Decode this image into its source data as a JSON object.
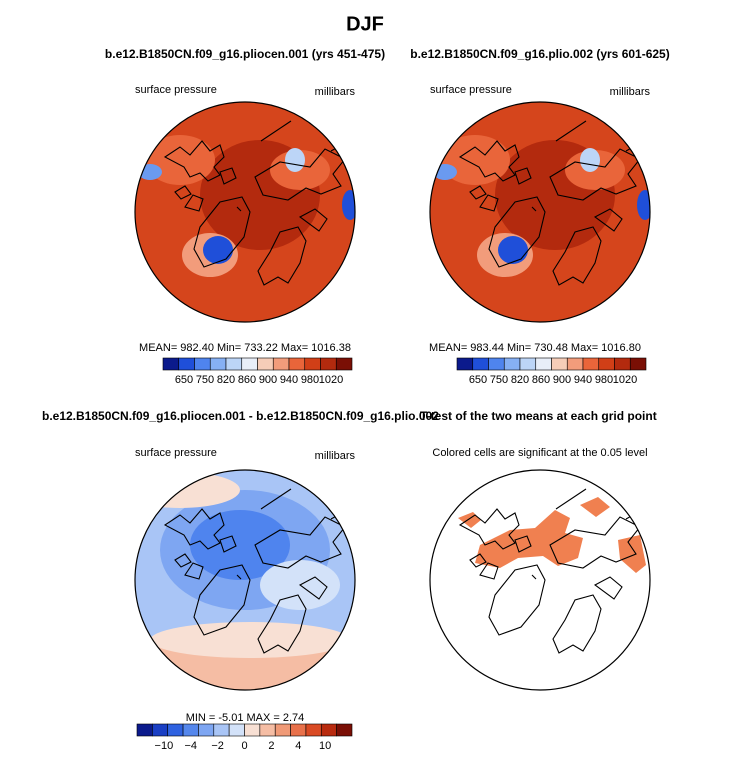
{
  "title": "DJF",
  "panels": [
    {
      "title": "b.e12.B1850CN.f09_g16.pliocen.001 (yrs 451-475)",
      "left_label": "surface pressure",
      "right_label": "millibars",
      "stats": "MEAN= 982.40   Min= 733.22   Max= 1016.38",
      "colorbar": {
        "labels": [
          "650",
          "750",
          "820",
          "860",
          "900",
          "940",
          "980",
          "1020"
        ],
        "colors": [
          "#0b1a8c",
          "#1f4fd9",
          "#4f84ee",
          "#86b0f4",
          "#bcd5f7",
          "#e8eef8",
          "#f6cdb8",
          "#f29c7b",
          "#e9653a",
          "#d13f17",
          "#b32a0e",
          "#7a0f05"
        ]
      }
    },
    {
      "title": "b.e12.B1850CN.f09_g16.plio.002 (yrs 601-625)",
      "left_label": "surface pressure",
      "right_label": "millibars",
      "stats": "MEAN= 983.44   Min= 730.48   Max= 1016.80",
      "colorbar": {
        "labels": [
          "650",
          "750",
          "820",
          "860",
          "900",
          "940",
          "980",
          "1020"
        ],
        "colors": [
          "#0b1a8c",
          "#1f4fd9",
          "#4f84ee",
          "#86b0f4",
          "#bcd5f7",
          "#e8eef8",
          "#f6cdb8",
          "#f29c7b",
          "#e9653a",
          "#d13f17",
          "#b32a0e",
          "#7a0f05"
        ]
      }
    },
    {
      "title": "b.e12.B1850CN.f09_g16.pliocen.001 - b.e12.B1850CN.f09_g16.plio.002",
      "left_label": "surface pressure",
      "right_label": "millibars",
      "stats": "MIN =   -5.01 MAX =    2.74",
      "colorbar": {
        "labels": [
          "−10",
          "−4",
          "−2",
          "0",
          "2",
          "4",
          "10"
        ],
        "colors": [
          "#0b1a8c",
          "#1a3fc4",
          "#2f62e0",
          "#5587ec",
          "#7ea6f2",
          "#a9c5f6",
          "#d3e2f9",
          "#f8e0d4",
          "#f5bda4",
          "#f09a77",
          "#e8714b",
          "#d94a24",
          "#b92b0f",
          "#7a0f05"
        ]
      }
    },
    {
      "title": "T-test of the two means at each grid point",
      "left_label": "Colored cells are significant at the 0.05 level"
    }
  ]
}
